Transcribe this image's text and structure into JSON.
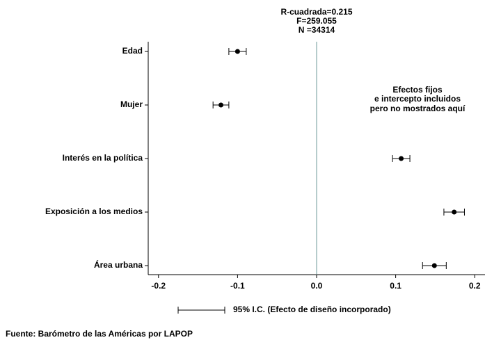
{
  "chart_data": {
    "type": "coefplot",
    "annotations": [
      "R-cuadrada=0.215",
      "F=259.055",
      "N =34314"
    ],
    "note": [
      "Efectos fijos",
      "e intercepto incluidos",
      "pero no mostrados aquí"
    ],
    "categories": [
      "Edad",
      "Mujer",
      "Interés en la política",
      "Exposición a los medios",
      "Área urbana"
    ],
    "values": [
      -0.1,
      -0.121,
      0.107,
      0.174,
      0.149
    ],
    "errors": [
      0.011,
      0.01,
      0.011,
      0.013,
      0.015
    ],
    "color": "#000000",
    "vline": 0,
    "vline_color": "#6e9a9a",
    "xlim": [
      -0.213,
      0.213
    ],
    "xticks": [
      -0.2,
      -0.1,
      {
        "value": 0,
        "label": "0.0"
      },
      0.1,
      0.2
    ],
    "legend": "95% I.C. (Efecto de diseño incorporado)",
    "source": "Fuente: Barómetro de las Américas por LAPOP"
  }
}
